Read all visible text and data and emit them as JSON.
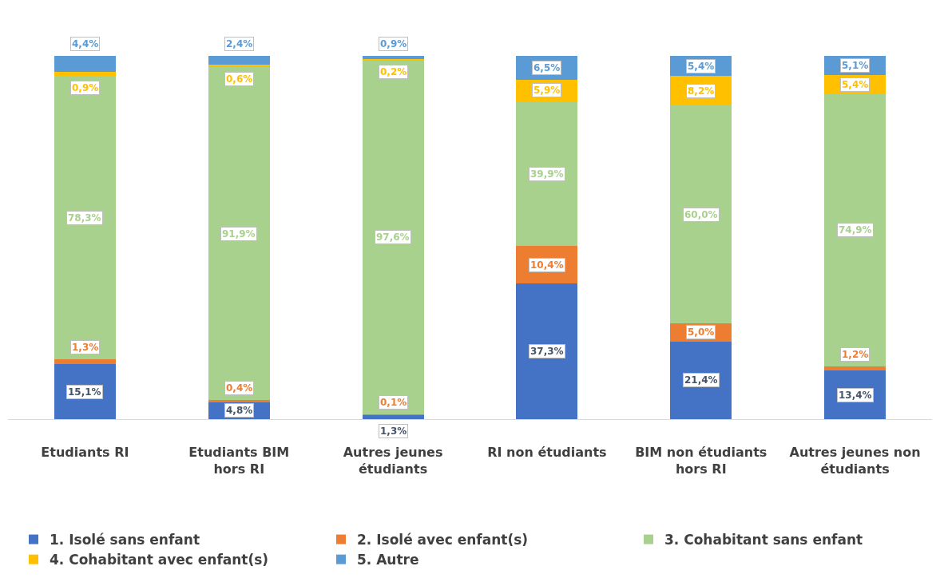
{
  "chart_data": {
    "type": "bar",
    "stacked": true,
    "data_labels": true,
    "legend": "bottom",
    "categories": [
      "Etudiants RI",
      "Etudiants BIM hors RI",
      "Autres jeunes étudiants",
      "RI non étudiants",
      "BIM non étudiants hors RI",
      "Autres jeunes non étudiants"
    ],
    "series": [
      {
        "name": "1. Isolé sans enfant",
        "color": "#4472c4",
        "values": [
          15.1,
          4.8,
          1.3,
          37.3,
          21.4,
          13.4
        ],
        "value_labels": [
          "15,1%",
          "4,8%",
          "1,3%",
          "37,3%",
          "21,4%",
          "13,4%"
        ]
      },
      {
        "name": "2. Isolé avec enfant(s)",
        "color": "#ed7d31",
        "values": [
          1.3,
          0.4,
          0.1,
          10.4,
          5.0,
          1.2
        ],
        "value_labels": [
          "1,3%",
          "0,4%",
          "0,1%",
          "10,4%",
          "5,0%",
          "1,2%"
        ]
      },
      {
        "name": "3. Cohabitant sans enfant",
        "color": "#a9d18e",
        "values": [
          78.3,
          91.9,
          97.6,
          39.9,
          60.0,
          74.9
        ],
        "value_labels": [
          "78,3%",
          "91,9%",
          "97,6%",
          "39,9%",
          "60,0%",
          "74,9%"
        ]
      },
      {
        "name": "4. Cohabitant avec enfant(s)",
        "color": "#ffc000",
        "values": [
          0.9,
          0.6,
          0.2,
          5.9,
          8.2,
          5.4
        ],
        "value_labels": [
          "0,9%",
          "0,6%",
          "0,2%",
          "5,9%",
          "8,2%",
          "5,4%"
        ]
      },
      {
        "name": "5. Autre",
        "color": "#5b9bd5",
        "values": [
          4.4,
          2.4,
          0.9,
          6.5,
          5.4,
          5.1
        ],
        "value_labels": [
          "4,4%",
          "2,4%",
          "0,9%",
          "6,5%",
          "5,4%",
          "5,1%"
        ]
      }
    ]
  }
}
